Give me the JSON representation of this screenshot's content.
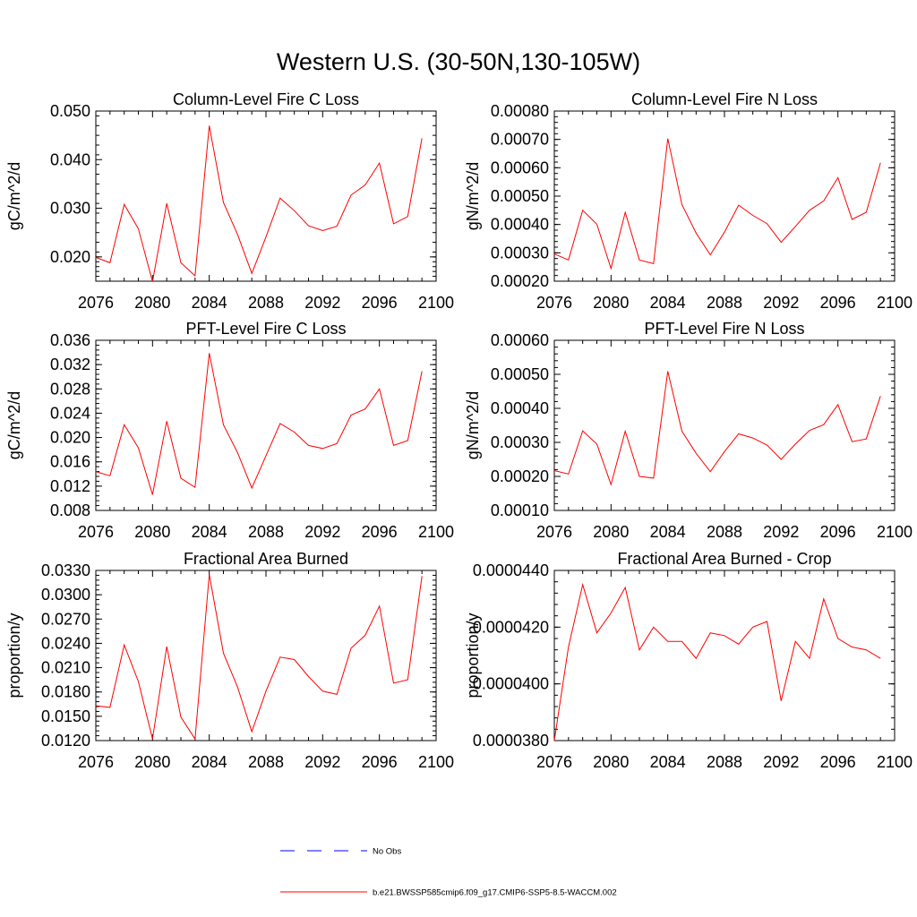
{
  "figure": {
    "title": "Western U.S. (30-50N,130-105W)"
  },
  "colors": {
    "series": "#ff0000",
    "obs": "#0000ff",
    "axis": "#000000"
  },
  "legend": {
    "entries": [
      {
        "label": "No Obs",
        "style": "dashed",
        "color": "#0000ff"
      },
      {
        "label": "b.e21.BWSSP585cmip6.f09_g17.CMIP6-SSP5-8.5-WACCM.002",
        "style": "solid",
        "color": "#ff0000"
      }
    ]
  },
  "chart_data": [
    {
      "type": "line",
      "title": "Column-Level Fire C Loss",
      "xlabel": "",
      "ylabel": "gC/m^2/d",
      "xlim": [
        2076,
        2100
      ],
      "ylim": [
        0.015,
        0.05
      ],
      "xticks": [
        2076,
        2080,
        2084,
        2088,
        2092,
        2096,
        2100
      ],
      "yticks": [
        0.02,
        0.03,
        0.04,
        0.05
      ],
      "ytick_labels": [
        "0.020",
        "0.030",
        "0.040",
        "0.050"
      ],
      "x": [
        2076,
        2077,
        2078,
        2079,
        2080,
        2081,
        2082,
        2083,
        2084,
        2085,
        2086,
        2087,
        2088,
        2089,
        2090,
        2091,
        2092,
        2093,
        2094,
        2095,
        2096,
        2097,
        2098,
        2099
      ],
      "series": [
        {
          "name": "b.e21.BWSSP585cmip6.f09_g17.CMIP6-SSP5-8.5-WACCM.002",
          "values": [
            0.0199,
            0.0188,
            0.0308,
            0.0258,
            0.0149,
            0.031,
            0.0188,
            0.0161,
            0.047,
            0.0312,
            0.0246,
            0.0166,
            0.0241,
            0.0321,
            0.0295,
            0.0264,
            0.0254,
            0.0263,
            0.0327,
            0.0348,
            0.0393,
            0.0268,
            0.0283,
            0.0444
          ]
        }
      ]
    },
    {
      "type": "line",
      "title": "Column-Level Fire N Loss",
      "xlabel": "",
      "ylabel": "gN/m^2/d",
      "xlim": [
        2076,
        2100
      ],
      "ylim": [
        0.0002,
        0.0008
      ],
      "xticks": [
        2076,
        2080,
        2084,
        2088,
        2092,
        2096,
        2100
      ],
      "yticks": [
        0.0002,
        0.0003,
        0.0004,
        0.0005,
        0.0006,
        0.0007,
        0.0008
      ],
      "ytick_labels": [
        "0.00020",
        "0.00030",
        "0.00040",
        "0.00050",
        "0.00060",
        "0.00070",
        "0.00080"
      ],
      "x": [
        2076,
        2077,
        2078,
        2079,
        2080,
        2081,
        2082,
        2083,
        2084,
        2085,
        2086,
        2087,
        2088,
        2089,
        2090,
        2091,
        2092,
        2093,
        2094,
        2095,
        2096,
        2097,
        2098,
        2099
      ],
      "series": [
        {
          "name": "b.e21.BWSSP585cmip6.f09_g17.CMIP6-SSP5-8.5-WACCM.002",
          "values": [
            0.000296,
            0.000275,
            0.00045,
            0.000401,
            0.000245,
            0.000443,
            0.000275,
            0.000262,
            0.000703,
            0.00047,
            0.00037,
            0.000293,
            0.000373,
            0.000468,
            0.000432,
            0.000403,
            0.000337,
            0.000393,
            0.00045,
            0.000483,
            0.000565,
            0.000418,
            0.000443,
            0.000617
          ]
        }
      ]
    },
    {
      "type": "line",
      "title": "PFT-Level Fire C Loss",
      "xlabel": "",
      "ylabel": "gC/m^2/d",
      "xlim": [
        2076,
        2100
      ],
      "ylim": [
        0.008,
        0.036
      ],
      "xticks": [
        2076,
        2080,
        2084,
        2088,
        2092,
        2096,
        2100
      ],
      "yticks": [
        0.008,
        0.012,
        0.016,
        0.02,
        0.024,
        0.028,
        0.032,
        0.036
      ],
      "ytick_labels": [
        "0.008",
        "0.012",
        "0.016",
        "0.020",
        "0.024",
        "0.028",
        "0.032",
        "0.036"
      ],
      "x": [
        2076,
        2077,
        2078,
        2079,
        2080,
        2081,
        2082,
        2083,
        2084,
        2085,
        2086,
        2087,
        2088,
        2089,
        2090,
        2091,
        2092,
        2093,
        2094,
        2095,
        2096,
        2097,
        2098,
        2099
      ],
      "series": [
        {
          "name": "b.e21.BWSSP585cmip6.f09_g17.CMIP6-SSP5-8.5-WACCM.002",
          "values": [
            0.0144,
            0.0137,
            0.0221,
            0.0183,
            0.0106,
            0.0227,
            0.0133,
            0.0118,
            0.0339,
            0.0221,
            0.0175,
            0.0117,
            0.017,
            0.0223,
            0.0209,
            0.0187,
            0.0182,
            0.019,
            0.0237,
            0.0247,
            0.028,
            0.0187,
            0.0195,
            0.0309
          ]
        }
      ]
    },
    {
      "type": "line",
      "title": "PFT-Level Fire N Loss",
      "xlabel": "",
      "ylabel": "gN/m^2/d",
      "xlim": [
        2076,
        2100
      ],
      "ylim": [
        0.0001,
        0.0006
      ],
      "xticks": [
        2076,
        2080,
        2084,
        2088,
        2092,
        2096,
        2100
      ],
      "yticks": [
        0.0001,
        0.0002,
        0.0003,
        0.0004,
        0.0005,
        0.0006
      ],
      "ytick_labels": [
        "0.00010",
        "0.00020",
        "0.00030",
        "0.00040",
        "0.00050",
        "0.00060"
      ],
      "x": [
        2076,
        2077,
        2078,
        2079,
        2080,
        2081,
        2082,
        2083,
        2084,
        2085,
        2086,
        2087,
        2088,
        2089,
        2090,
        2091,
        2092,
        2093,
        2094,
        2095,
        2096,
        2097,
        2098,
        2099
      ],
      "series": [
        {
          "name": "b.e21.BWSSP585cmip6.f09_g17.CMIP6-SSP5-8.5-WACCM.002",
          "values": [
            0.000217,
            0.000207,
            0.000334,
            0.000295,
            0.000176,
            0.000333,
            0.0002,
            0.000195,
            0.000509,
            0.000333,
            0.000268,
            0.000214,
            0.000273,
            0.000325,
            0.000313,
            0.000292,
            0.00025,
            0.000295,
            0.000335,
            0.000352,
            0.000411,
            0.000302,
            0.00031,
            0.000436
          ]
        }
      ]
    },
    {
      "type": "line",
      "title": "Fractional Area Burned",
      "xlabel": "",
      "ylabel": "proportion/y",
      "xlim": [
        2076,
        2100
      ],
      "ylim": [
        0.012,
        0.033
      ],
      "xticks": [
        2076,
        2080,
        2084,
        2088,
        2092,
        2096,
        2100
      ],
      "yticks": [
        0.012,
        0.015,
        0.018,
        0.021,
        0.024,
        0.027,
        0.03,
        0.033
      ],
      "ytick_labels": [
        "0.0120",
        "0.0150",
        "0.0180",
        "0.0210",
        "0.0240",
        "0.0270",
        "0.0300",
        "0.0330"
      ],
      "x": [
        2076,
        2077,
        2078,
        2079,
        2080,
        2081,
        2082,
        2083,
        2084,
        2085,
        2086,
        2087,
        2088,
        2089,
        2090,
        2091,
        2092,
        2093,
        2094,
        2095,
        2096,
        2097,
        2098,
        2099
      ],
      "series": [
        {
          "name": "b.e21.BWSSP585cmip6.f09_g17.CMIP6-SSP5-8.5-WACCM.002",
          "values": [
            0.0163,
            0.0161,
            0.0238,
            0.0193,
            0.0122,
            0.0236,
            0.0149,
            0.0122,
            0.0325,
            0.0228,
            0.0186,
            0.0131,
            0.0181,
            0.0223,
            0.022,
            0.0199,
            0.0181,
            0.0177,
            0.0234,
            0.025,
            0.0286,
            0.0191,
            0.0195,
            0.0323
          ]
        }
      ]
    },
    {
      "type": "line",
      "title": "Fractional Area Burned - Crop",
      "xlabel": "",
      "ylabel": "proportion/y",
      "xlim": [
        2076,
        2100
      ],
      "ylim": [
        3.8e-05,
        4.4e-05
      ],
      "xticks": [
        2076,
        2080,
        2084,
        2088,
        2092,
        2096,
        2100
      ],
      "yticks": [
        3.8e-05,
        4e-05,
        4.2e-05,
        4.4e-05
      ],
      "ytick_labels": [
        "0.0000380",
        "0.0000400",
        "0.0000420",
        "0.0000440"
      ],
      "x": [
        2076,
        2077,
        2078,
        2079,
        2080,
        2081,
        2082,
        2083,
        2084,
        2085,
        2086,
        2087,
        2088,
        2089,
        2090,
        2091,
        2092,
        2093,
        2094,
        2095,
        2096,
        2097,
        2098,
        2099
      ],
      "series": [
        {
          "name": "b.e21.BWSSP585cmip6.f09_g17.CMIP6-SSP5-8.5-WACCM.002",
          "values": [
            3.8e-05,
            4.13e-05,
            4.35e-05,
            4.18e-05,
            4.25e-05,
            4.34e-05,
            4.12e-05,
            4.2e-05,
            4.15e-05,
            4.15e-05,
            4.09e-05,
            4.18e-05,
            4.17e-05,
            4.14e-05,
            4.2e-05,
            4.22e-05,
            3.94e-05,
            4.15e-05,
            4.09e-05,
            4.3e-05,
            4.16e-05,
            4.13e-05,
            4.12e-05,
            4.09e-05
          ]
        }
      ]
    }
  ]
}
